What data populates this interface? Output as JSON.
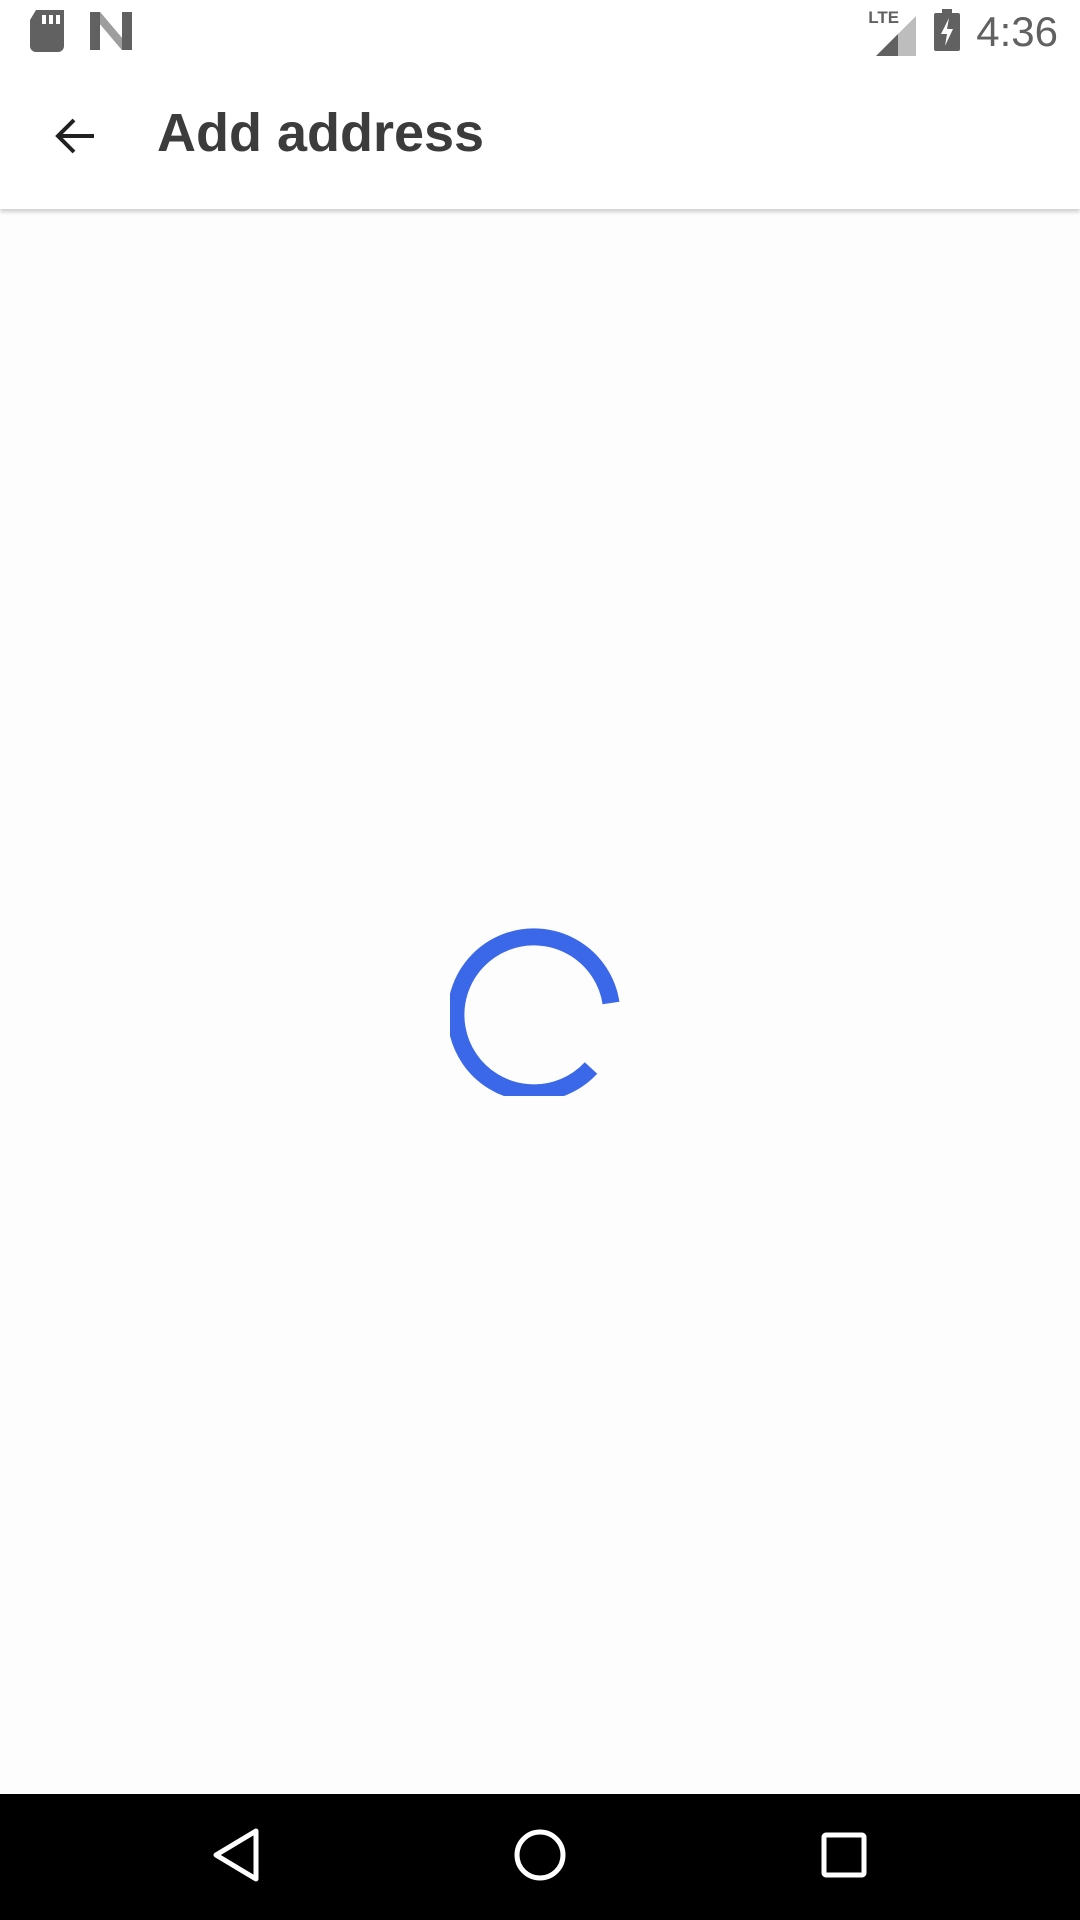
{
  "status_bar": {
    "time": "4:36",
    "icons": [
      "sd-card-icon",
      "n-logo-icon",
      "lte-icon",
      "cell-signal-icon",
      "battery-charging-icon"
    ],
    "network_label": "LTE"
  },
  "app_bar": {
    "title": "Add address",
    "back_icon": "arrow-back-icon"
  },
  "content": {
    "loading_indicator": "spinner-icon",
    "accent_color": "#3b68e8"
  },
  "nav_bar": {
    "buttons": [
      "back-triangle-icon",
      "home-circle-icon",
      "recents-square-icon"
    ]
  }
}
